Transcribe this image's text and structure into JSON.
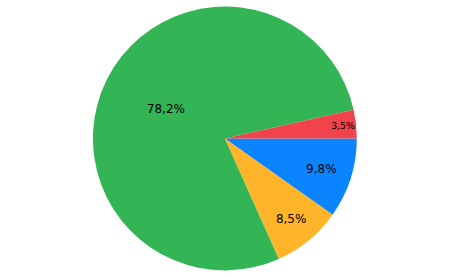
{
  "chart_data": {
    "type": "pie",
    "values": [
      9.8,
      8.5,
      78.2,
      3.5
    ],
    "value_labels": [
      "9,8%",
      "8,5%",
      "78,2%",
      "3,5%"
    ],
    "colors": [
      "#0a84ff",
      "#ffb42a",
      "#33b556",
      "#f0434b"
    ],
    "data_labels": true
  }
}
